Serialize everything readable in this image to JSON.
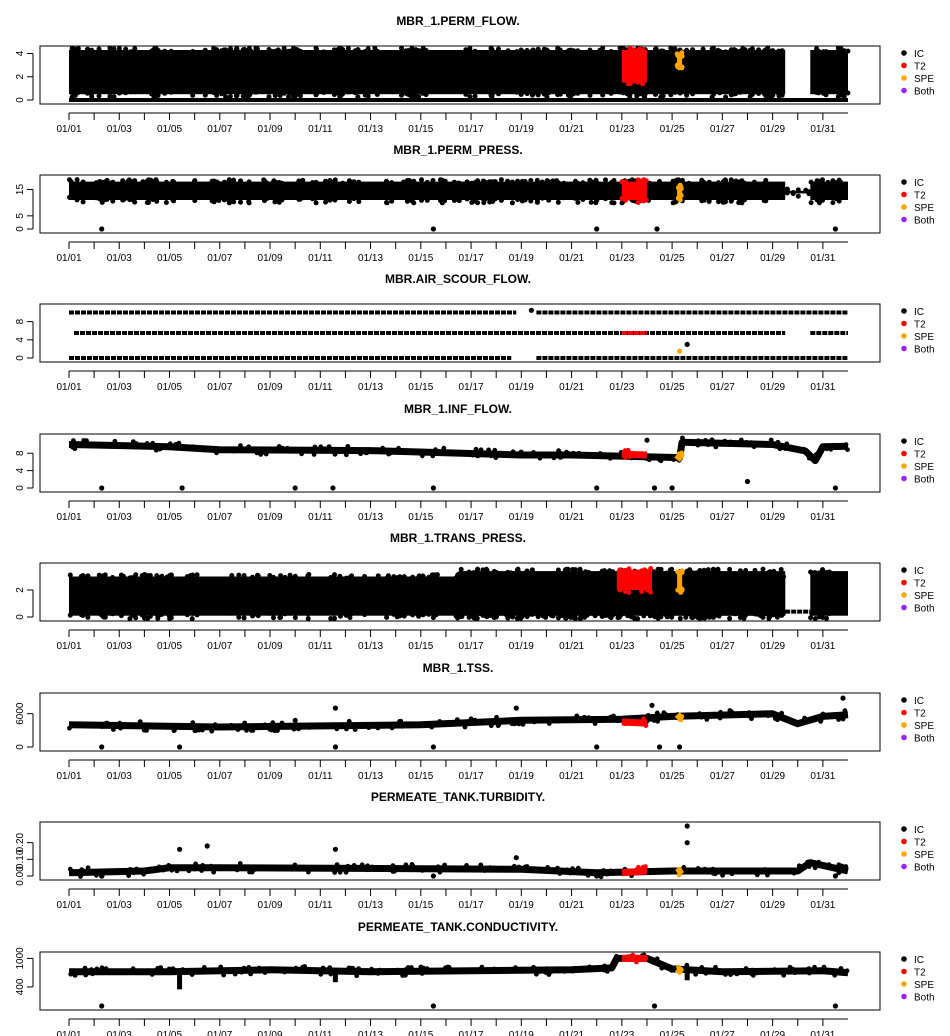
{
  "legend": [
    {
      "label": "IC",
      "color": "#000000"
    },
    {
      "label": "T2",
      "color": "#ff0000"
    },
    {
      "label": "SPE",
      "color": "#ffa500"
    },
    {
      "label": "Both",
      "color": "#a020f0"
    }
  ],
  "chart_data": [
    {
      "type": "scatter",
      "title": "MBR_1.PERM_FLOW.",
      "x_ticks": [
        "01/01",
        "01/03",
        "01/05",
        "01/07",
        "01/09",
        "01/11",
        "01/13",
        "01/15",
        "01/17",
        "01/19",
        "01/21",
        "01/23",
        "01/25",
        "01/27",
        "01/29",
        "01/31"
      ],
      "xlim": [
        "01/01",
        "02/01"
      ],
      "y_ticks": [
        "0",
        "2",
        "4"
      ],
      "ylim": [
        0,
        4.3
      ],
      "series": [
        {
          "name": "IC",
          "segments": [
            {
              "start": "01/01",
              "end": "01/29.5",
              "low": 0.5,
              "high": 4.3
            },
            {
              "start": "01/30.5",
              "end": "02/01",
              "low": 0.5,
              "high": 4.3
            }
          ],
          "baseline": [
            {
              "start": "01/01",
              "end": "02/01",
              "value": 0
            }
          ]
        },
        {
          "name": "T2",
          "segments": [
            {
              "start": "01/23",
              "end": "01/24",
              "low": 1.5,
              "high": 4.3
            }
          ]
        },
        {
          "name": "SPE",
          "segments": [
            {
              "start": "01/25.2",
              "end": "01/25.4",
              "low": 3.0,
              "high": 3.9
            }
          ]
        }
      ]
    },
    {
      "type": "scatter",
      "title": "MBR_1.PERM_PRESS.",
      "x_ticks": [
        "01/01",
        "01/03",
        "01/05",
        "01/07",
        "01/09",
        "01/11",
        "01/13",
        "01/15",
        "01/17",
        "01/19",
        "01/21",
        "01/23",
        "01/25",
        "01/27",
        "01/29",
        "01/31"
      ],
      "xlim": [
        "01/01",
        "02/01"
      ],
      "y_ticks": [
        "0",
        "5",
        "15"
      ],
      "ylim": [
        0,
        19
      ],
      "series": [
        {
          "name": "IC",
          "segments": [
            {
              "start": "01/01",
              "end": "01/29.5",
              "low": 11,
              "high": 18
            },
            {
              "start": "01/29.5",
              "end": "01/30.5",
              "low": 13.5,
              "high": 14.5
            },
            {
              "start": "01/30.5",
              "end": "02/01",
              "low": 11,
              "high": 18
            }
          ],
          "outliers": [
            [
              "01/02.3",
              0
            ],
            [
              "01/15.5",
              0
            ],
            [
              "01/22",
              0
            ],
            [
              "01/24.4",
              0
            ],
            [
              "01/31.5",
              0
            ]
          ]
        },
        {
          "name": "T2",
          "segments": [
            {
              "start": "01/23",
              "end": "01/24",
              "low": 11,
              "high": 18
            }
          ]
        },
        {
          "name": "SPE",
          "segments": [
            {
              "start": "01/25.2",
              "end": "01/25.4",
              "low": 12,
              "high": 16
            }
          ]
        }
      ]
    },
    {
      "type": "scatter",
      "title": "MBR.AIR_SCOUR_FLOW.",
      "x_ticks": [
        "01/01",
        "01/03",
        "01/05",
        "01/07",
        "01/09",
        "01/11",
        "01/13",
        "01/15",
        "01/17",
        "01/19",
        "01/21",
        "01/23",
        "01/25",
        "01/27",
        "01/29",
        "01/31"
      ],
      "xlim": [
        "01/01",
        "02/01"
      ],
      "y_ticks": [
        "0",
        "4",
        "8"
      ],
      "ylim": [
        0,
        11
      ],
      "series": [
        {
          "name": "IC",
          "levels": [
            {
              "start": "01/01",
              "end": "01/18.8",
              "value": 10
            },
            {
              "start": "01/19.6",
              "end": "02/01",
              "value": 10
            },
            {
              "start": "01/01.2",
              "end": "01/29.5",
              "value": 5.5
            },
            {
              "start": "01/30.5",
              "end": "02/01",
              "value": 5.5
            },
            {
              "start": "01/01",
              "end": "01/18.6",
              "value": 0
            },
            {
              "start": "01/19.6",
              "end": "02/01",
              "value": 0
            }
          ],
          "outliers": [
            [
              "01/19.4",
              10.5
            ],
            [
              "01/25.6",
              3
            ]
          ]
        },
        {
          "name": "T2",
          "levels": [
            {
              "start": "01/23",
              "end": "01/24",
              "value": 5.5
            }
          ]
        },
        {
          "name": "SPE",
          "outliers": [
            [
              "01/25.3",
              1.5
            ]
          ]
        }
      ]
    },
    {
      "type": "scatter",
      "title": "MBR_1.INF_FLOW.",
      "x_ticks": [
        "01/01",
        "01/03",
        "01/05",
        "01/07",
        "01/09",
        "01/11",
        "01/13",
        "01/15",
        "01/17",
        "01/19",
        "01/21",
        "01/23",
        "01/25",
        "01/27",
        "01/29",
        "01/31"
      ],
      "xlim": [
        "01/01",
        "02/01"
      ],
      "y_ticks": [
        "0",
        "4",
        "8"
      ],
      "ylim": [
        0,
        11.5
      ],
      "series": [
        {
          "name": "IC",
          "trend": [
            [
              "01/01",
              10
            ],
            [
              "01/05",
              9.5
            ],
            [
              "01/07",
              8.8
            ],
            [
              "01/13",
              8.6
            ],
            [
              "01/19",
              7.6
            ],
            [
              "01/21",
              7.6
            ],
            [
              "01/25.3",
              7.0
            ],
            [
              "01/25.4",
              10.5
            ],
            [
              "01/29",
              10
            ],
            [
              "01/30.3",
              8.5
            ],
            [
              "01/30.7",
              6.3
            ],
            [
              "01/31",
              9.5
            ],
            [
              "02/01",
              9.6
            ]
          ],
          "outliers": [
            [
              "01/02.3",
              0
            ],
            [
              "01/05.5",
              0
            ],
            [
              "01/10",
              0
            ],
            [
              "01/11.5",
              0
            ],
            [
              "01/15.5",
              0
            ],
            [
              "01/22",
              0
            ],
            [
              "01/24.3",
              0
            ],
            [
              "01/25",
              0
            ],
            [
              "01/28",
              1.5
            ],
            [
              "01/31.5",
              0
            ],
            [
              "01/24",
              11
            ]
          ]
        },
        {
          "name": "T2",
          "trend": [
            [
              "01/23",
              7.8
            ],
            [
              "01/24",
              7.6
            ]
          ]
        },
        {
          "name": "SPE",
          "trend": [
            [
              "01/25.2",
              6.5
            ],
            [
              "01/25.4",
              8
            ]
          ]
        }
      ]
    },
    {
      "type": "scatter",
      "title": "MBR_1.TRANS_PRESS.",
      "x_ticks": [
        "01/01",
        "01/03",
        "01/05",
        "01/07",
        "01/09",
        "01/11",
        "01/13",
        "01/15",
        "01/17",
        "01/19",
        "01/21",
        "01/23",
        "01/25",
        "01/27",
        "01/29",
        "01/31"
      ],
      "xlim": [
        "01/01",
        "02/01"
      ],
      "y_ticks": [
        "0",
        "2"
      ],
      "ylim": [
        0,
        3.7
      ],
      "series": [
        {
          "name": "IC",
          "segments": [
            {
              "start": "01/01",
              "end": "01/29.5",
              "low": 0.1,
              "high": 3.0
            },
            {
              "start": "01/16.5",
              "end": "01/29.5",
              "low": 0.1,
              "high": 3.4
            },
            {
              "start": "01/30.5",
              "end": "02/01",
              "low": 0.1,
              "high": 3.4
            }
          ],
          "levels": [
            {
              "start": "01/29.5",
              "end": "01/30.5",
              "value": 0.4
            }
          ]
        },
        {
          "name": "T2",
          "segments": [
            {
              "start": "01/22.8",
              "end": "01/24.2",
              "low": 2.0,
              "high": 3.5
            }
          ]
        },
        {
          "name": "SPE",
          "segments": [
            {
              "start": "01/25.2",
              "end": "01/25.4",
              "low": 2.0,
              "high": 3.3
            }
          ]
        }
      ]
    },
    {
      "type": "scatter",
      "title": "MBR_1.TSS.",
      "x_ticks": [
        "01/01",
        "01/03",
        "01/05",
        "01/07",
        "01/09",
        "01/11",
        "01/13",
        "01/15",
        "01/17",
        "01/19",
        "01/21",
        "01/23",
        "01/25",
        "01/27",
        "01/29",
        "01/31"
      ],
      "xlim": [
        "01/01",
        "02/01"
      ],
      "y_ticks": [
        "0",
        "6000"
      ],
      "ylim": [
        0,
        9000
      ],
      "series": [
        {
          "name": "IC",
          "trend": [
            [
              "01/01",
              4000
            ],
            [
              "01/07",
              3600
            ],
            [
              "01/15",
              4000
            ],
            [
              "01/19",
              4800
            ],
            [
              "01/23",
              5000
            ],
            [
              "01/25",
              5500
            ],
            [
              "01/29",
              6000
            ],
            [
              "01/30",
              4200
            ],
            [
              "01/31",
              5500
            ],
            [
              "02/01",
              5800
            ]
          ],
          "outliers": [
            [
              "01/02.3",
              0
            ],
            [
              "01/05.4",
              0
            ],
            [
              "01/09",
              3200
            ],
            [
              "01/10",
              4800
            ],
            [
              "01/11.6",
              7000
            ],
            [
              "01/11.6",
              0
            ],
            [
              "01/15.5",
              0
            ],
            [
              "01/18.8",
              7000
            ],
            [
              "01/22",
              0
            ],
            [
              "01/24.2",
              7500
            ],
            [
              "01/24.5",
              0
            ],
            [
              "01/25.3",
              0
            ],
            [
              "01/31.8",
              8800
            ]
          ]
        },
        {
          "name": "T2",
          "trend": [
            [
              "01/23",
              4500
            ],
            [
              "01/24",
              4300
            ]
          ]
        },
        {
          "name": "SPE",
          "trend": [
            [
              "01/25.2",
              5000
            ],
            [
              "01/25.4",
              5800
            ]
          ]
        }
      ]
    },
    {
      "type": "scatter",
      "title": "PERMEATE_TANK.TURBIDITY.",
      "x_ticks": [
        "01/01",
        "01/03",
        "01/05",
        "01/07",
        "01/09",
        "01/11",
        "01/13",
        "01/15",
        "01/17",
        "01/19",
        "01/21",
        "01/23",
        "01/25",
        "01/27",
        "01/29",
        "01/31"
      ],
      "xlim": [
        "01/01",
        "02/01"
      ],
      "y_ticks": [
        "0.00",
        "0.10",
        "0.20"
      ],
      "ylim": [
        0,
        0.3
      ],
      "series": [
        {
          "name": "IC",
          "trend": [
            [
              "01/01",
              0.02
            ],
            [
              "01/04",
              0.03
            ],
            [
              "01/05",
              0.05
            ],
            [
              "01/07",
              0.05
            ],
            [
              "01/19",
              0.04
            ],
            [
              "01/22",
              0.02
            ],
            [
              "01/25",
              0.03
            ],
            [
              "01/30",
              0.03
            ],
            [
              "01/30.5",
              0.08
            ],
            [
              "02/01",
              0.03
            ]
          ],
          "outliers": [
            [
              "01/05.4",
              0.16
            ],
            [
              "01/06.5",
              0.18
            ],
            [
              "01/11.6",
              0.16
            ],
            [
              "01/18.8",
              0.11
            ],
            [
              "01/25.6",
              0.3
            ],
            [
              "01/25.6",
              0.2
            ],
            [
              "01/02.3",
              0
            ],
            [
              "01/15.5",
              0
            ],
            [
              "01/22",
              0
            ],
            [
              "01/31.5",
              0
            ]
          ]
        },
        {
          "name": "T2",
          "trend": [
            [
              "01/23",
              0.02
            ],
            [
              "01/24",
              0.03
            ]
          ]
        },
        {
          "name": "SPE",
          "trend": [
            [
              "01/25.2",
              0.02
            ],
            [
              "01/25.4",
              0.04
            ]
          ]
        }
      ]
    },
    {
      "type": "scatter",
      "title": "PERMEATE_TANK.CONDUCTIVITY.",
      "x_ticks": [
        "01/01",
        "01/03",
        "01/05",
        "01/07",
        "01/09",
        "01/11",
        "01/13",
        "01/15",
        "01/17",
        "01/19",
        "01/21",
        "01/23",
        "01/25",
        "01/27",
        "01/29",
        "01/31"
      ],
      "xlim": [
        "01/01",
        "02/01"
      ],
      "y_ticks": [
        "400",
        "1000"
      ],
      "ylim": [
        0,
        1050
      ],
      "series": [
        {
          "name": "IC",
          "trend": [
            [
              "01/01",
              720
            ],
            [
              "01/05",
              720
            ],
            [
              "01/09",
              760
            ],
            [
              "01/13",
              720
            ],
            [
              "01/21",
              760
            ],
            [
              "01/22.6",
              800
            ],
            [
              "01/22.8",
              1000
            ],
            [
              "01/24",
              1000
            ],
            [
              "01/25",
              780
            ],
            [
              "01/27",
              720
            ],
            [
              "01/31",
              740
            ],
            [
              "02/01",
              700
            ]
          ],
          "drops": [
            [
              "01/05.4",
              350
            ],
            [
              "01/11.6",
              500
            ],
            [
              "01/25.6",
              540
            ]
          ],
          "outliers": [
            [
              "01/02.3",
              0
            ],
            [
              "01/15.5",
              0
            ],
            [
              "01/24.3",
              0
            ],
            [
              "01/31.5",
              0
            ]
          ]
        },
        {
          "name": "T2",
          "trend": [
            [
              "01/23",
              1000
            ],
            [
              "01/24",
              1000
            ]
          ]
        },
        {
          "name": "SPE",
          "trend": [
            [
              "01/25.2",
              780
            ],
            [
              "01/25.4",
              700
            ]
          ]
        }
      ]
    }
  ]
}
